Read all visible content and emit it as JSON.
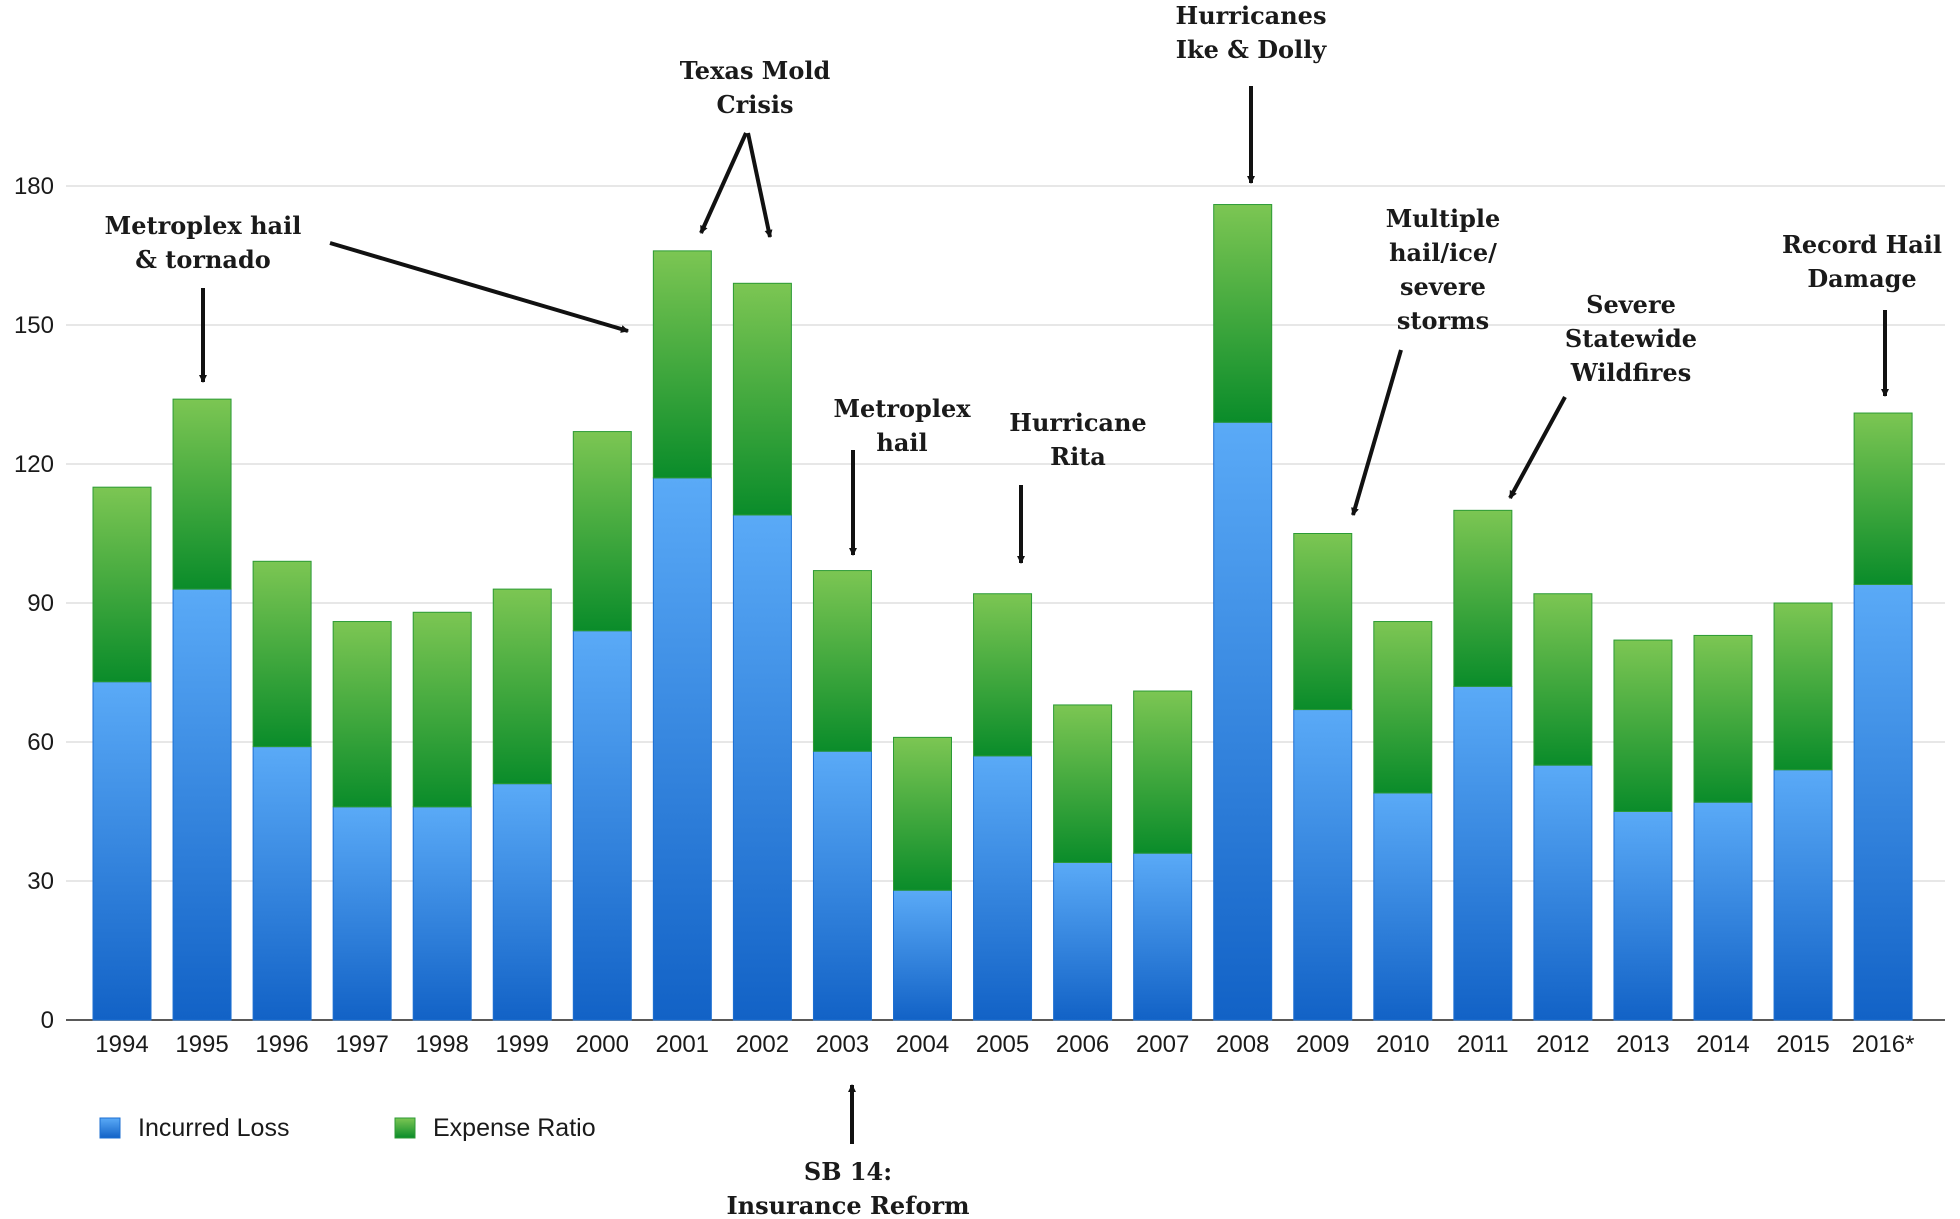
{
  "chart_data": {
    "type": "bar",
    "stacked": true,
    "categories": [
      "1994",
      "1995",
      "1996",
      "1997",
      "1998",
      "1999",
      "2000",
      "2001",
      "2002",
      "2003",
      "2004",
      "2005",
      "2006",
      "2007",
      "2008",
      "2009",
      "2010",
      "2011",
      "2012",
      "2013",
      "2014",
      "2015",
      "2016*"
    ],
    "series": [
      {
        "name": "Incurred Loss",
        "color": "#2f86e0",
        "values": [
          73,
          93,
          59,
          46,
          46,
          51,
          84,
          117,
          109,
          58,
          28,
          57,
          34,
          36,
          129,
          67,
          49,
          72,
          55,
          45,
          47,
          54,
          94
        ]
      },
      {
        "name": "Expense Ratio",
        "color": "#38a83a",
        "values": [
          42,
          41,
          40,
          40,
          42,
          42,
          43,
          49,
          50,
          39,
          33,
          35,
          34,
          35,
          47,
          38,
          37,
          38,
          37,
          37,
          36,
          36,
          37
        ]
      }
    ],
    "yticks": [
      0,
      30,
      60,
      90,
      120,
      150,
      180
    ],
    "ylim": [
      0,
      180
    ],
    "grid": true,
    "legend": "bottom-left",
    "annotations": [
      {
        "lines": [
          "Metroplex hail",
          "& tornado"
        ],
        "years": [
          "1995",
          "2000"
        ]
      },
      {
        "lines": [
          "Texas Mold",
          "Crisis"
        ],
        "years": [
          "2001",
          "2002"
        ]
      },
      {
        "lines": [
          "Metroplex",
          "hail"
        ],
        "years": [
          "2003"
        ]
      },
      {
        "lines": [
          "Hurricane",
          "Rita"
        ],
        "years": [
          "2005"
        ]
      },
      {
        "lines": [
          "Hurricanes",
          "Ike & Dolly"
        ],
        "years": [
          "2008"
        ]
      },
      {
        "lines": [
          "Multiple",
          "hail/ice/",
          "severe",
          "storms"
        ],
        "years": [
          "2009"
        ]
      },
      {
        "lines": [
          "Severe",
          "Statewide",
          "Wildfires"
        ],
        "years": [
          "2011"
        ]
      },
      {
        "lines": [
          "Record Hail",
          "Damage"
        ],
        "years": [
          "2016*"
        ]
      },
      {
        "lines": [
          "SB 14:",
          "Insurance Reform"
        ],
        "years": [
          "2003"
        ]
      }
    ]
  }
}
